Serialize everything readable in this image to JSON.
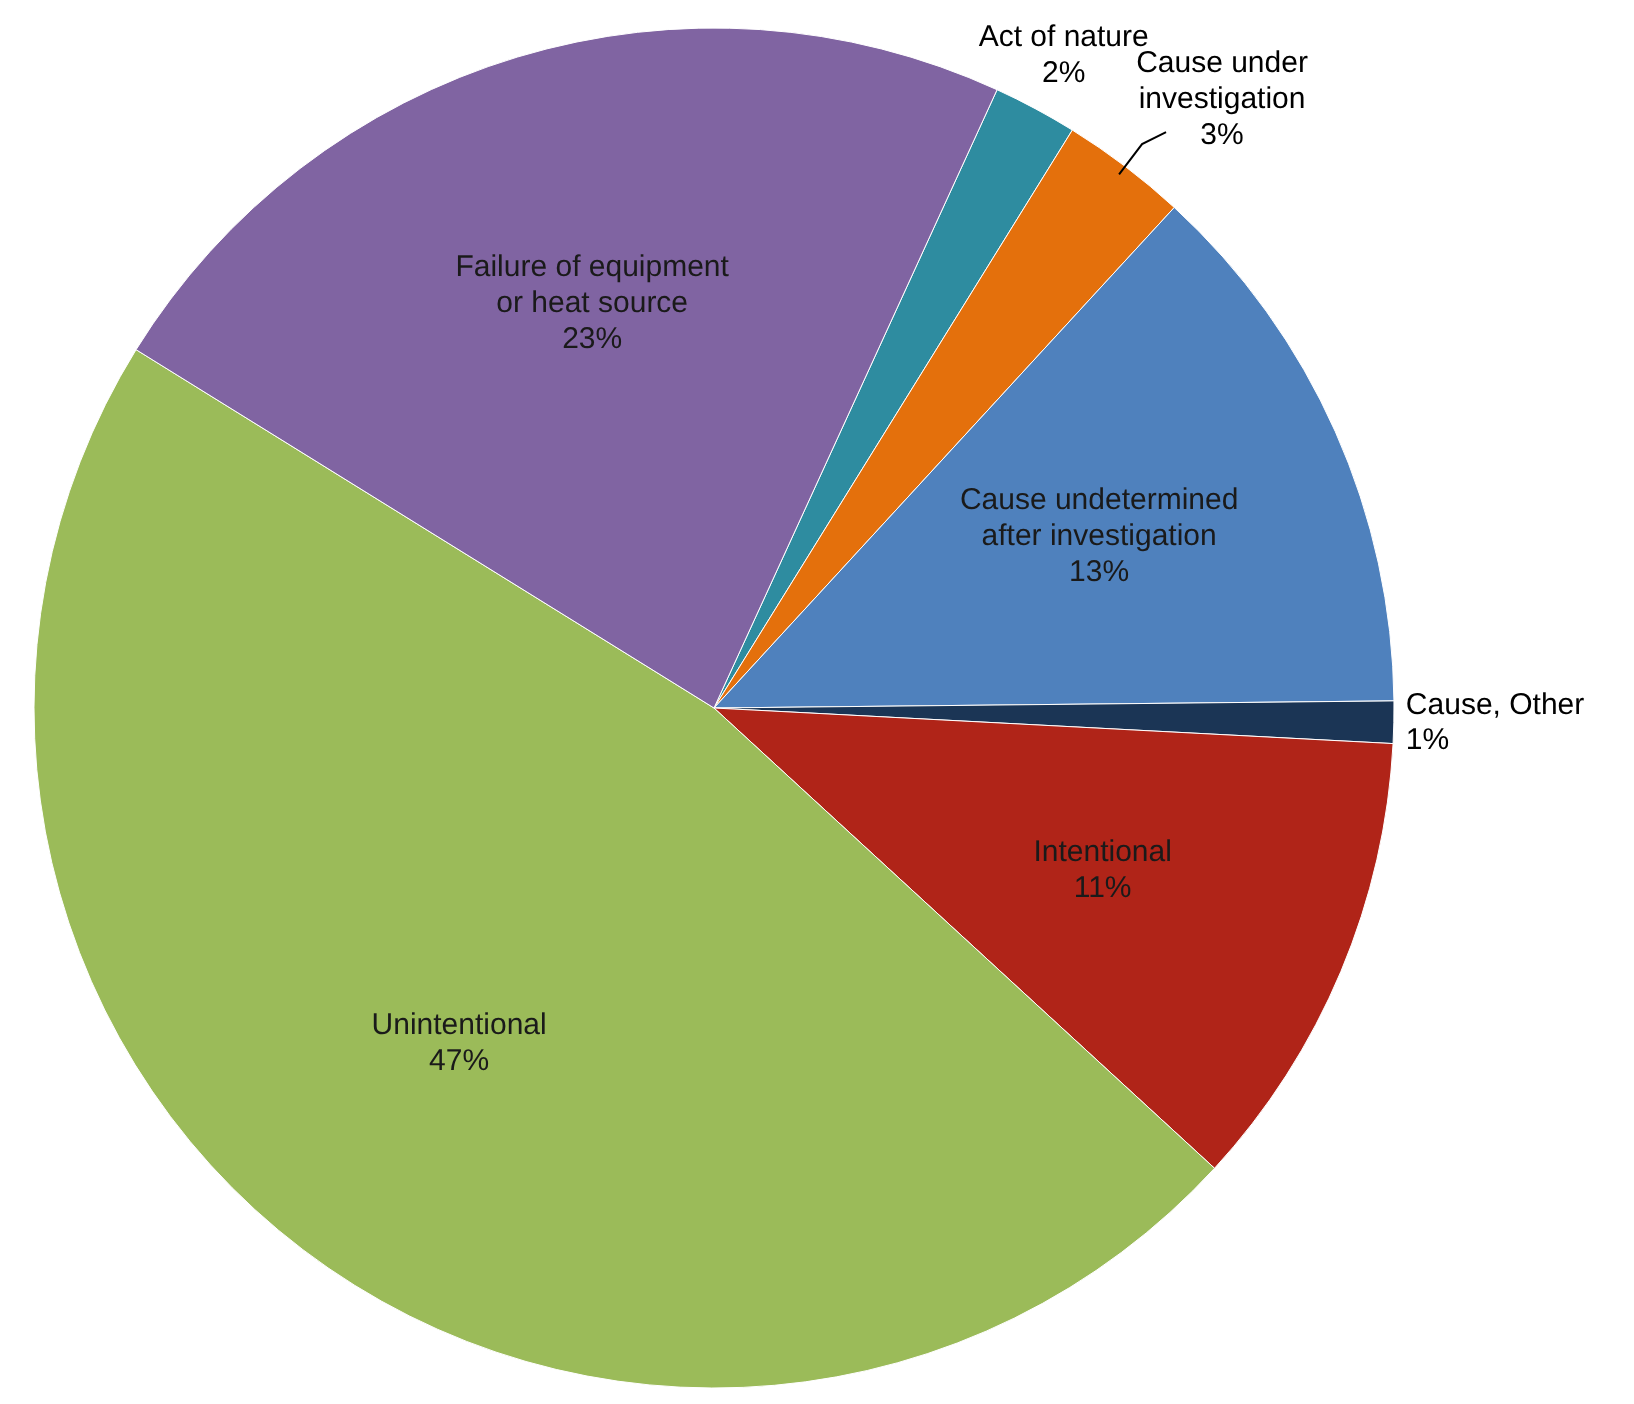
{
  "chart_data": {
    "type": "pie",
    "categories": [
      "Act of nature",
      "Cause under investigation",
      "Cause undetermined after investigation",
      "Cause, Other",
      "Intentional",
      "Unintentional",
      "Failure of equipment or heat source"
    ],
    "values": [
      2,
      3,
      13,
      1,
      11,
      47,
      23
    ],
    "value_labels": [
      "2%",
      "3%",
      "13%",
      "1%",
      "11%",
      "47%",
      "23%"
    ],
    "colors": [
      "#2e8ca0",
      "#e4700c",
      "#4f81bd",
      "#1b3555",
      "#b02418",
      "#9bbb59",
      "#8064a2"
    ]
  }
}
